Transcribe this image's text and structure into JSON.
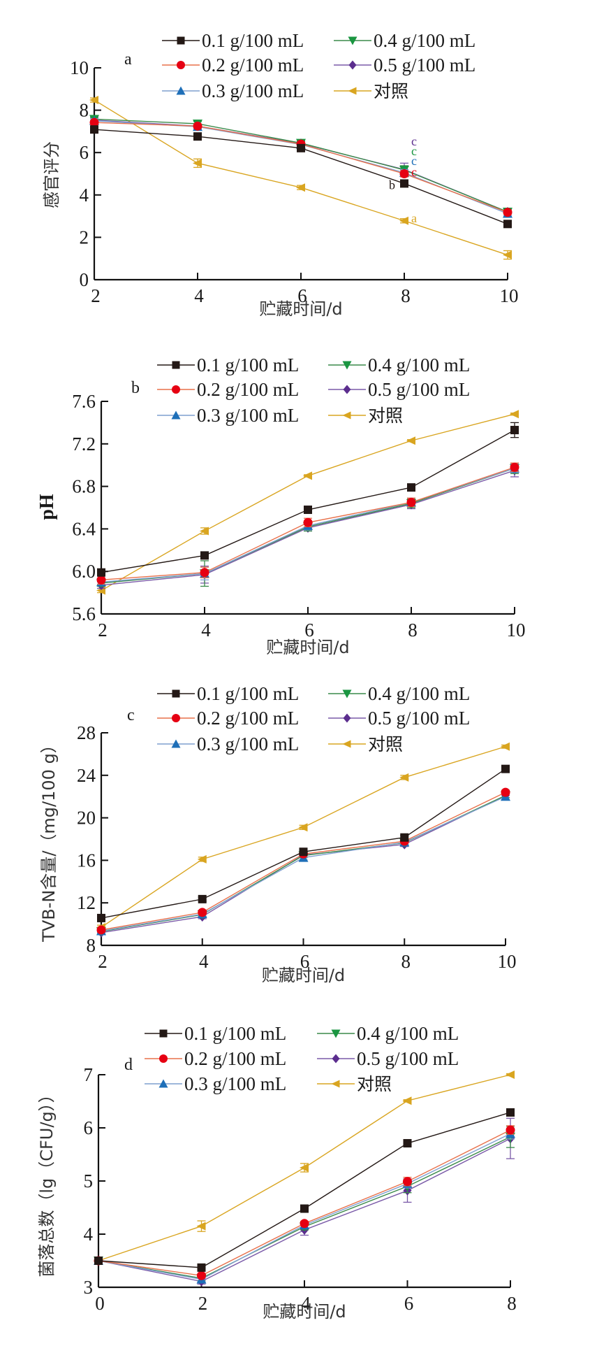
{
  "figure": {
    "series_styles": [
      {
        "name": "0.1 g/100 mL",
        "color": "#231815",
        "marker": "square"
      },
      {
        "name": "0.2 g/100 mL",
        "color": "#e60012",
        "line_color": "#e8704a",
        "marker": "circle"
      },
      {
        "name": "0.3 g/100 mL",
        "color": "#1e6fb8",
        "line_color": "#7f9fcf",
        "marker": "triangle-up"
      },
      {
        "name": "0.4 g/100 mL",
        "color": "#1a9641",
        "line_color": "#3a8a4a",
        "marker": "triangle-down"
      },
      {
        "name": "0.5 g/100 mL",
        "color": "#5b2d8e",
        "line_color": "#7a5aa8",
        "marker": "diamond"
      },
      {
        "name": "对照",
        "color": "#d9a520",
        "marker": "triangle-left"
      }
    ]
  },
  "chart_data": [
    {
      "type": "line",
      "panel_label": "a",
      "title": "",
      "xlabel": "贮藏时间/d",
      "ylabel": "感官评分",
      "x": [
        2,
        4,
        6,
        8,
        10
      ],
      "xticks": [
        "2",
        "4",
        "6",
        "8",
        "10"
      ],
      "xlim": [
        2,
        10
      ],
      "yticks": [
        "0",
        "2",
        "4",
        "6",
        "8",
        "10"
      ],
      "ylim": [
        0,
        10
      ],
      "legend": "top-right",
      "grid": false,
      "series": [
        {
          "name": "0.1 g/100 mL",
          "values": [
            7.09,
            6.76,
            6.21,
            4.54,
            2.63
          ],
          "errors": [
            0.1,
            0.1,
            0.1,
            0.1,
            0.1
          ]
        },
        {
          "name": "0.2 g/100 mL",
          "values": [
            7.42,
            7.25,
            6.4,
            5.0,
            3.18
          ],
          "errors": [
            0.1,
            0.1,
            0.1,
            0.15,
            0.1
          ]
        },
        {
          "name": "0.3 g/100 mL",
          "values": [
            7.5,
            7.22,
            6.38,
            5.05,
            3.12
          ],
          "errors": [
            0.1,
            0.1,
            0.1,
            0.15,
            0.1
          ]
        },
        {
          "name": "0.4 g/100 mL",
          "values": [
            7.58,
            7.36,
            6.45,
            5.18,
            3.2
          ],
          "errors": [
            0.1,
            0.1,
            0.1,
            0.2,
            0.1
          ]
        },
        {
          "name": "0.5 g/100 mL",
          "values": [
            7.53,
            7.25,
            6.43,
            5.2,
            3.2
          ],
          "errors": [
            0.1,
            0.1,
            0.1,
            0.3,
            0.1
          ]
        },
        {
          "name": "对照",
          "values": [
            8.48,
            5.5,
            4.35,
            2.78,
            1.17
          ],
          "errors": [
            0.1,
            0.2,
            0.1,
            0.1,
            0.2
          ]
        }
      ],
      "annotations": [
        {
          "text": "c",
          "series": "0.5 g/100 mL",
          "x": 8
        },
        {
          "text": "c",
          "series": "0.4 g/100 mL",
          "x": 8
        },
        {
          "text": "c",
          "series": "0.3 g/100 mL",
          "x": 8
        },
        {
          "text": "c",
          "series": "0.2 g/100 mL",
          "x": 8
        },
        {
          "text": "b",
          "series": "0.1 g/100 mL",
          "x": 8
        },
        {
          "text": "a",
          "series": "对照",
          "x": 8
        }
      ]
    },
    {
      "type": "line",
      "panel_label": "b",
      "title": "",
      "xlabel": "贮藏时间/d",
      "ylabel": "pH",
      "x": [
        2,
        4,
        6,
        8,
        10
      ],
      "xticks": [
        "2",
        "4",
        "6",
        "8",
        "10"
      ],
      "xlim": [
        2,
        10
      ],
      "yticks": [
        "5.6",
        "6.0",
        "6.4",
        "6.8",
        "7.2",
        "7.6"
      ],
      "ylim": [
        5.6,
        7.6
      ],
      "legend": "top-right",
      "grid": false,
      "series": [
        {
          "name": "0.1 g/100 mL",
          "values": [
            5.99,
            6.15,
            6.58,
            6.79,
            7.33
          ],
          "errors": [
            0.02,
            0.02,
            0.02,
            0.02,
            0.07
          ]
        },
        {
          "name": "0.2 g/100 mL",
          "values": [
            5.92,
            5.99,
            6.46,
            6.65,
            6.98
          ],
          "errors": [
            0.04,
            0.05,
            0.04,
            0.04,
            0.04
          ]
        },
        {
          "name": "0.3 g/100 mL",
          "values": [
            5.9,
            5.98,
            6.43,
            6.65,
            6.97
          ],
          "errors": [
            0.03,
            0.06,
            0.04,
            0.04,
            0.04
          ]
        },
        {
          "name": "0.4 g/100 mL",
          "values": [
            5.89,
            5.98,
            6.42,
            6.64,
            6.97
          ],
          "errors": [
            0.03,
            0.12,
            0.04,
            0.04,
            0.05
          ]
        },
        {
          "name": "0.5 g/100 mL",
          "values": [
            5.87,
            5.97,
            6.41,
            6.63,
            6.95
          ],
          "errors": [
            0.03,
            0.08,
            0.03,
            0.04,
            0.06
          ]
        },
        {
          "name": "对照",
          "values": [
            5.82,
            6.38,
            6.9,
            7.23,
            7.48
          ],
          "errors": [
            0.02,
            0.03,
            0.01,
            0.01,
            0.01
          ]
        }
      ]
    },
    {
      "type": "line",
      "panel_label": "c",
      "title": "",
      "xlabel": "贮藏时间/d",
      "ylabel": "TVB-N含量/（mg/100 g）",
      "x": [
        2,
        4,
        6,
        8,
        10
      ],
      "xticks": [
        "2",
        "4",
        "6",
        "8",
        "10"
      ],
      "xlim": [
        2,
        10
      ],
      "yticks": [
        "8",
        "12",
        "16",
        "20",
        "24",
        "28"
      ],
      "ylim": [
        8,
        28
      ],
      "legend": "top-right",
      "grid": false,
      "series": [
        {
          "name": "0.1 g/100 mL",
          "values": [
            10.57,
            12.35,
            16.8,
            18.15,
            24.6
          ],
          "errors": [
            0.2,
            0.2,
            0.3,
            0.2,
            0.3
          ]
        },
        {
          "name": "0.2 g/100 mL",
          "values": [
            9.45,
            11.1,
            16.6,
            17.8,
            22.4
          ],
          "errors": [
            0.2,
            0.2,
            0.2,
            0.2,
            0.2
          ]
        },
        {
          "name": "0.3 g/100 mL",
          "values": [
            9.35,
            10.95,
            16.25,
            17.7,
            22.0
          ],
          "errors": [
            0.2,
            0.2,
            0.2,
            0.2,
            0.3
          ]
        },
        {
          "name": "0.4 g/100 mL",
          "values": [
            9.3,
            10.9,
            16.45,
            17.65,
            22.1
          ],
          "errors": [
            0.2,
            0.2,
            0.2,
            0.2,
            0.2
          ]
        },
        {
          "name": "0.5 g/100 mL",
          "values": [
            9.2,
            10.7,
            16.5,
            17.5,
            22.1
          ],
          "errors": [
            0.2,
            0.2,
            0.2,
            0.2,
            0.4
          ]
        },
        {
          "name": "对照",
          "values": [
            9.7,
            16.1,
            19.1,
            23.8,
            26.7
          ],
          "errors": [
            0.2,
            0.2,
            0.2,
            0.2,
            0.15
          ]
        }
      ]
    },
    {
      "type": "line",
      "panel_label": "d",
      "title": "",
      "xlabel": "贮藏时间/d",
      "ylabel": "菌落总数（lg（CFU/g））",
      "x": [
        0,
        2,
        4,
        6,
        8
      ],
      "xticks": [
        "0",
        "2",
        "4",
        "6",
        "8"
      ],
      "xlim": [
        0,
        8
      ],
      "yticks": [
        "3",
        "4",
        "5",
        "6",
        "7"
      ],
      "ylim": [
        3,
        7
      ],
      "legend": "top-right",
      "grid": false,
      "series": [
        {
          "name": "0.1 g/100 mL",
          "values": [
            3.5,
            3.37,
            4.48,
            5.71,
            6.29
          ],
          "errors": [
            0.02,
            0.03,
            0.04,
            0.03,
            0.03
          ]
        },
        {
          "name": "0.2 g/100 mL",
          "values": [
            3.5,
            3.22,
            4.2,
            4.99,
            5.96
          ],
          "errors": [
            0.02,
            0.04,
            0.04,
            0.08,
            0.08
          ]
        },
        {
          "name": "0.3 g/100 mL",
          "values": [
            3.5,
            3.15,
            4.17,
            4.95,
            5.89
          ],
          "errors": [
            0.02,
            0.04,
            0.05,
            0.08,
            0.1
          ]
        },
        {
          "name": "0.4 g/100 mL",
          "values": [
            3.5,
            3.17,
            4.14,
            4.9,
            5.83
          ],
          "errors": [
            0.02,
            0.05,
            0.06,
            0.12,
            0.2
          ]
        },
        {
          "name": "0.5 g/100 mL",
          "values": [
            3.5,
            3.11,
            4.08,
            4.82,
            5.8
          ],
          "errors": [
            0.02,
            0.05,
            0.1,
            0.22,
            0.38
          ]
        },
        {
          "name": "对照",
          "values": [
            3.5,
            4.15,
            5.25,
            6.51,
            7.0
          ],
          "errors": [
            0.02,
            0.1,
            0.08,
            0.02,
            0.02
          ]
        }
      ]
    }
  ]
}
